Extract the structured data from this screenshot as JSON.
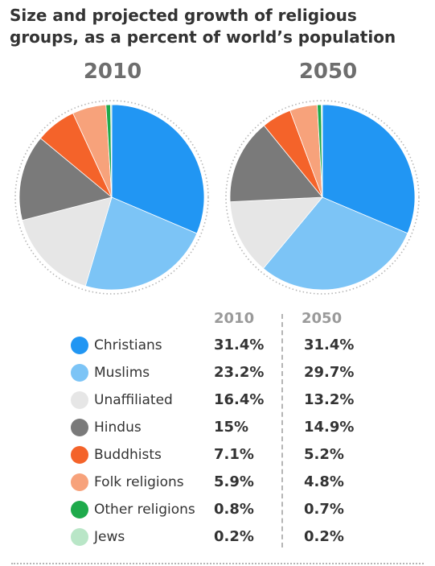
{
  "title_lines": [
    "Size and projected growth of religious",
    "groups, as a percent of world’s population"
  ],
  "table": {
    "col_2010": "2010",
    "col_2050": "2050"
  },
  "chart_data": {
    "type": "pie",
    "title": "Size and projected growth of religious groups, as a percent of world’s population",
    "years": [
      "2010",
      "2050"
    ],
    "categories": [
      "Christians",
      "Muslims",
      "Unaffiliated",
      "Hindus",
      "Buddhists",
      "Folk religions",
      "Other religions",
      "Jews"
    ],
    "colors": [
      "#2196f3",
      "#7cc4f6",
      "#e6e6e6",
      "#7a7a7a",
      "#f4632a",
      "#f7a27b",
      "#1eaa4b",
      "#b9e6c7"
    ],
    "series": [
      {
        "name": "2010",
        "values": [
          31.4,
          23.2,
          16.4,
          15,
          7.1,
          5.9,
          0.8,
          0.2
        ],
        "labels": [
          "31.4%",
          "23.2%",
          "16.4%",
          "15%",
          "7.1%",
          "5.9%",
          "0.8%",
          "0.2%"
        ]
      },
      {
        "name": "2050",
        "values": [
          31.4,
          29.7,
          13.2,
          14.9,
          5.2,
          4.8,
          0.7,
          0.2
        ],
        "labels": [
          "31.4%",
          "29.7%",
          "13.2%",
          "14.9%",
          "5.2%",
          "4.8%",
          "0.7%",
          "0.2%"
        ]
      }
    ],
    "legend_position": "bottom"
  }
}
